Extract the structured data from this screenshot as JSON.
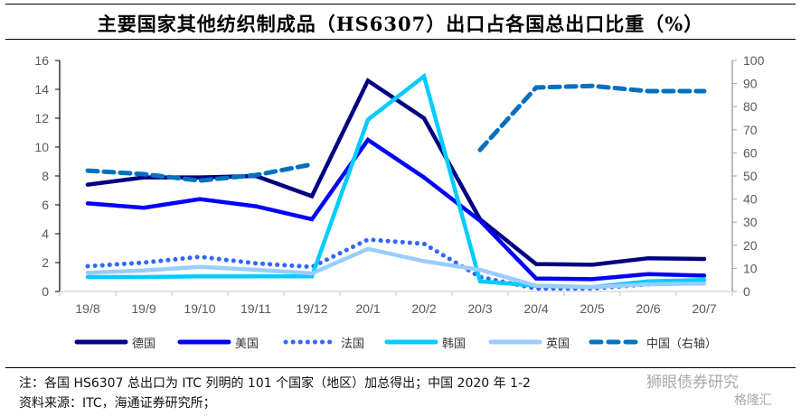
{
  "title": "主要国家其他纺织制成品（HS6307）出口占各国总出口比重（%）",
  "chart_data": {
    "type": "line",
    "title": "主要国家其他纺织制成品（HS6307）出口占各国总出口比重（%）",
    "xlabel": "",
    "ylabel": "",
    "categories": [
      "19/8",
      "19/9",
      "19/10",
      "19/11",
      "19/12",
      "20/1",
      "20/2",
      "20/3",
      "20/4",
      "20/5",
      "20/6",
      "20/7"
    ],
    "y_left": {
      "ylim": [
        0,
        16
      ],
      "ticks": [
        0,
        2,
        4,
        6,
        8,
        10,
        12,
        14,
        16
      ]
    },
    "y_right": {
      "ylim": [
        0,
        100
      ],
      "ticks": [
        0,
        10,
        20,
        30,
        40,
        50,
        60,
        70,
        80,
        90,
        100
      ]
    },
    "grid": false,
    "legend_position": "bottom",
    "series": [
      {
        "name": "德国",
        "axis": "left",
        "style": "solid",
        "color": "#000080",
        "values": [
          7.4,
          7.9,
          7.9,
          8.0,
          6.6,
          14.6,
          12.0,
          5.0,
          1.9,
          1.85,
          2.3,
          2.25
        ]
      },
      {
        "name": "美国",
        "axis": "left",
        "style": "solid",
        "color": "#0000FF",
        "values": [
          6.1,
          5.8,
          6.4,
          5.9,
          5.0,
          10.5,
          7.9,
          4.9,
          0.9,
          0.85,
          1.2,
          1.1
        ]
      },
      {
        "name": "法国",
        "axis": "left",
        "style": "dotted",
        "color": "#3366FF",
        "values": [
          1.75,
          2.0,
          2.4,
          1.95,
          1.7,
          3.6,
          3.3,
          1.0,
          0.2,
          0.2,
          0.5,
          0.6
        ]
      },
      {
        "name": "韩国",
        "axis": "left",
        "style": "solid",
        "color": "#00CCFF",
        "values": [
          1.0,
          1.0,
          1.05,
          1.05,
          1.05,
          11.9,
          14.9,
          0.7,
          0.4,
          0.3,
          0.7,
          0.8
        ]
      },
      {
        "name": "英国",
        "axis": "left",
        "style": "solid",
        "color": "#99CCFF",
        "values": [
          1.3,
          1.45,
          1.7,
          1.5,
          1.25,
          2.95,
          2.1,
          1.5,
          0.4,
          0.3,
          0.5,
          0.55
        ]
      },
      {
        "name": "中国（右轴）",
        "axis": "right",
        "style": "dashed",
        "color": "#0070C0",
        "values": [
          52.3,
          50.8,
          48.0,
          50.4,
          55.0,
          null,
          null,
          61.3,
          88.3,
          89.0,
          86.7,
          86.7
        ]
      }
    ]
  },
  "footer": {
    "note": "注：各国 HS6307 总出口为 ITC 列明的 101 个国家（地区）加总得出；中国 2020 年 1-2",
    "source": "资料来源：ITC，海通证券研究所；"
  },
  "watermarks": {
    "w1": "狮眼债券研究",
    "w2": "格隆汇"
  }
}
